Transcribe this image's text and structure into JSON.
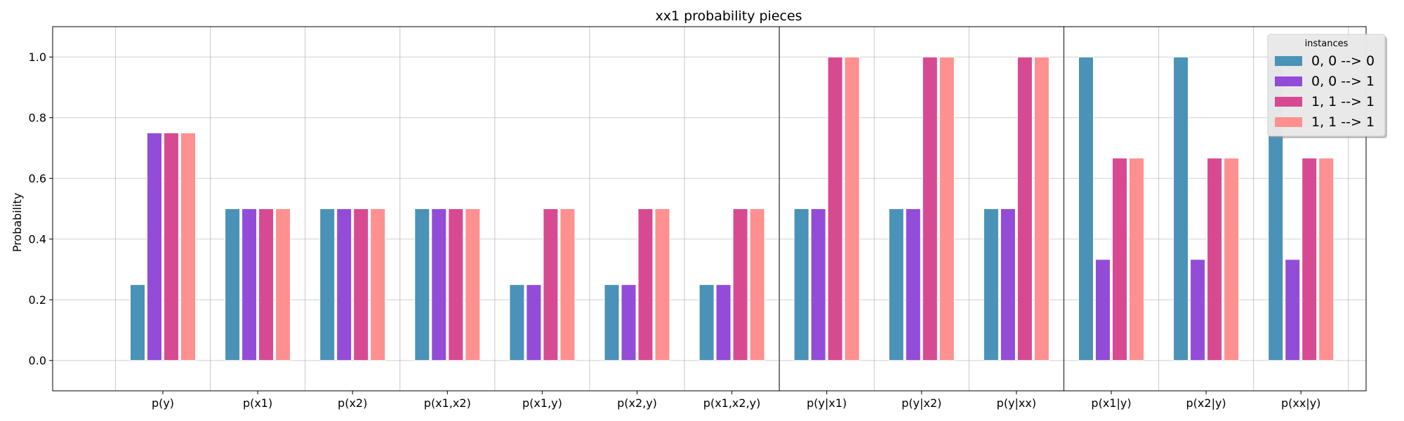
{
  "chart_data": {
    "type": "bar",
    "title": "xx1 probability pieces",
    "xlabel": "",
    "ylabel": "Probability",
    "ylim": [
      -0.1,
      1.1
    ],
    "yticks": [
      "0.0",
      "0.2",
      "0.4",
      "0.6",
      "0.8",
      "1.0"
    ],
    "grid": true,
    "legend_title": "instances",
    "legend_position": "top-right",
    "categories": [
      "p(y)",
      "p(x1)",
      "p(x2)",
      "p(x1,x2)",
      "p(x1,y)",
      "p(x2,y)",
      "p(x1,x2,y)",
      "p(y|x1)",
      "p(y|x2)",
      "p(y|xx)",
      "p(x1|y)",
      "p(x2|y)",
      "p(xx|y)"
    ],
    "section_dividers_after": [
      "p(x1,x2,y)",
      "p(y|xx)"
    ],
    "series": [
      {
        "name": "0, 0 --> 0",
        "color": "#4a92b7",
        "values": [
          0.25,
          0.5,
          0.5,
          0.5,
          0.25,
          0.25,
          0.25,
          0.5,
          0.5,
          0.5,
          1.0,
          1.0,
          1.0
        ]
      },
      {
        "name": "0, 0 --> 1",
        "color": "#934cd8",
        "values": [
          0.75,
          0.5,
          0.5,
          0.5,
          0.25,
          0.25,
          0.25,
          0.5,
          0.5,
          0.5,
          0.333,
          0.333,
          0.333
        ]
      },
      {
        "name": "1, 1 --> 1",
        "color": "#d74a91",
        "values": [
          0.75,
          0.5,
          0.5,
          0.5,
          0.5,
          0.5,
          0.5,
          1.0,
          1.0,
          1.0,
          0.667,
          0.667,
          0.667
        ]
      },
      {
        "name": "1, 1 --> 1",
        "color": "#fe9090",
        "values": [
          0.75,
          0.5,
          0.5,
          0.5,
          0.5,
          0.5,
          0.5,
          1.0,
          1.0,
          1.0,
          0.667,
          0.667,
          0.667
        ]
      }
    ]
  }
}
